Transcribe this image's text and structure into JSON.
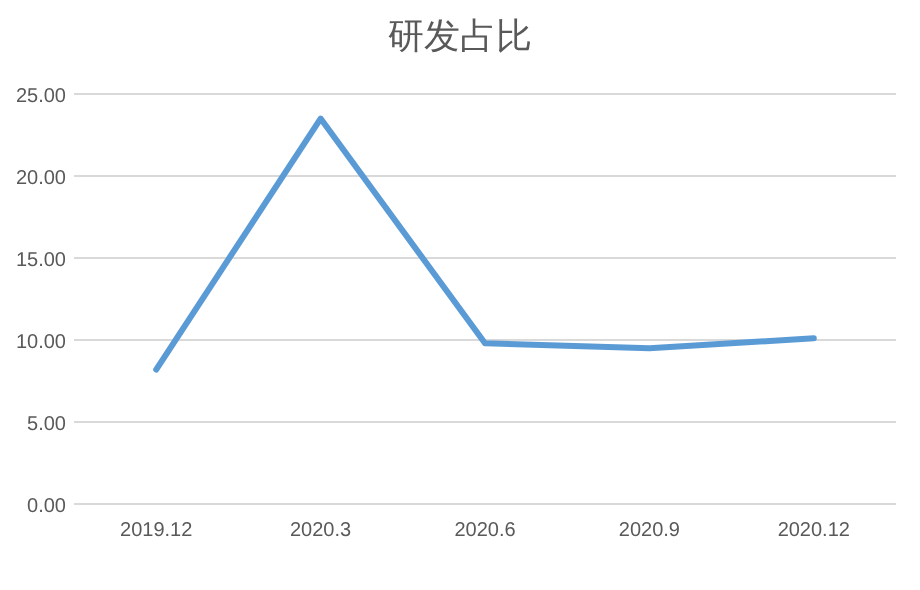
{
  "chart_data": {
    "type": "line",
    "title": "研发占比",
    "categories": [
      "2019.12",
      "2020.3",
      "2020.6",
      "2020.9",
      "2020.12"
    ],
    "series": [
      {
        "color": "#5b9bd5",
        "values": [
          8.2,
          23.5,
          9.8,
          9.5,
          10.1
        ]
      }
    ],
    "ylim": [
      0,
      25
    ],
    "yticks": [
      {
        "value": 0,
        "label": "0.00"
      },
      {
        "value": 5,
        "label": "5.00"
      },
      {
        "value": 10,
        "label": "10.00"
      },
      {
        "value": 15,
        "label": "15.00"
      },
      {
        "value": 20,
        "label": "20.00"
      },
      {
        "value": 25,
        "label": "25.00"
      }
    ],
    "grid": "y",
    "marker": "none",
    "line_style": "solid"
  }
}
